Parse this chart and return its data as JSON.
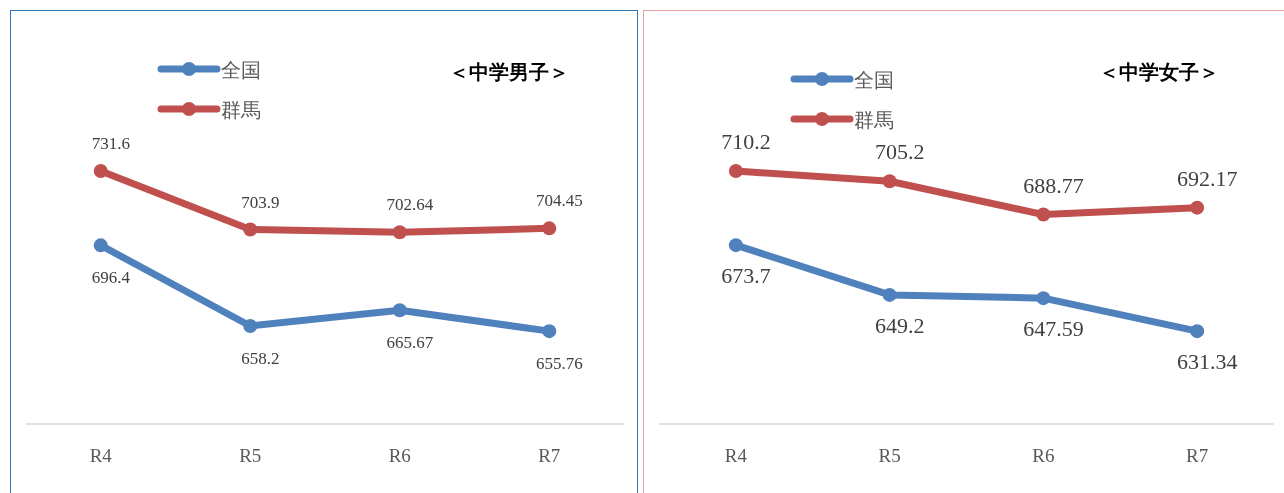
{
  "chart_data": [
    {
      "type": "line",
      "title": "＜中学男子＞",
      "categories": [
        "R4",
        "R5",
        "R6",
        "R7"
      ],
      "tick_labels": "x",
      "legend": "top left",
      "marker": "circle",
      "data_labels": true,
      "series": [
        {
          "name": "全国",
          "color": "#4f81bd",
          "values": [
            696.4,
            658.2,
            665.67,
            655.76
          ]
        },
        {
          "name": "群馬",
          "color": "#c0504d",
          "values": [
            731.6,
            703.9,
            702.64,
            704.45
          ]
        }
      ]
    },
    {
      "type": "line",
      "title": "＜中学女子＞",
      "categories": [
        "R4",
        "R5",
        "R6",
        "R7"
      ],
      "tick_labels": "x",
      "legend": "top left",
      "marker": "circle",
      "data_labels": true,
      "series": [
        {
          "name": "全国",
          "color": "#4f81bd",
          "values": [
            673.7,
            649.2,
            647.59,
            631.34
          ]
        },
        {
          "name": "群馬",
          "color": "#c0504d",
          "values": [
            710.2,
            705.2,
            688.77,
            692.17
          ]
        }
      ]
    }
  ]
}
